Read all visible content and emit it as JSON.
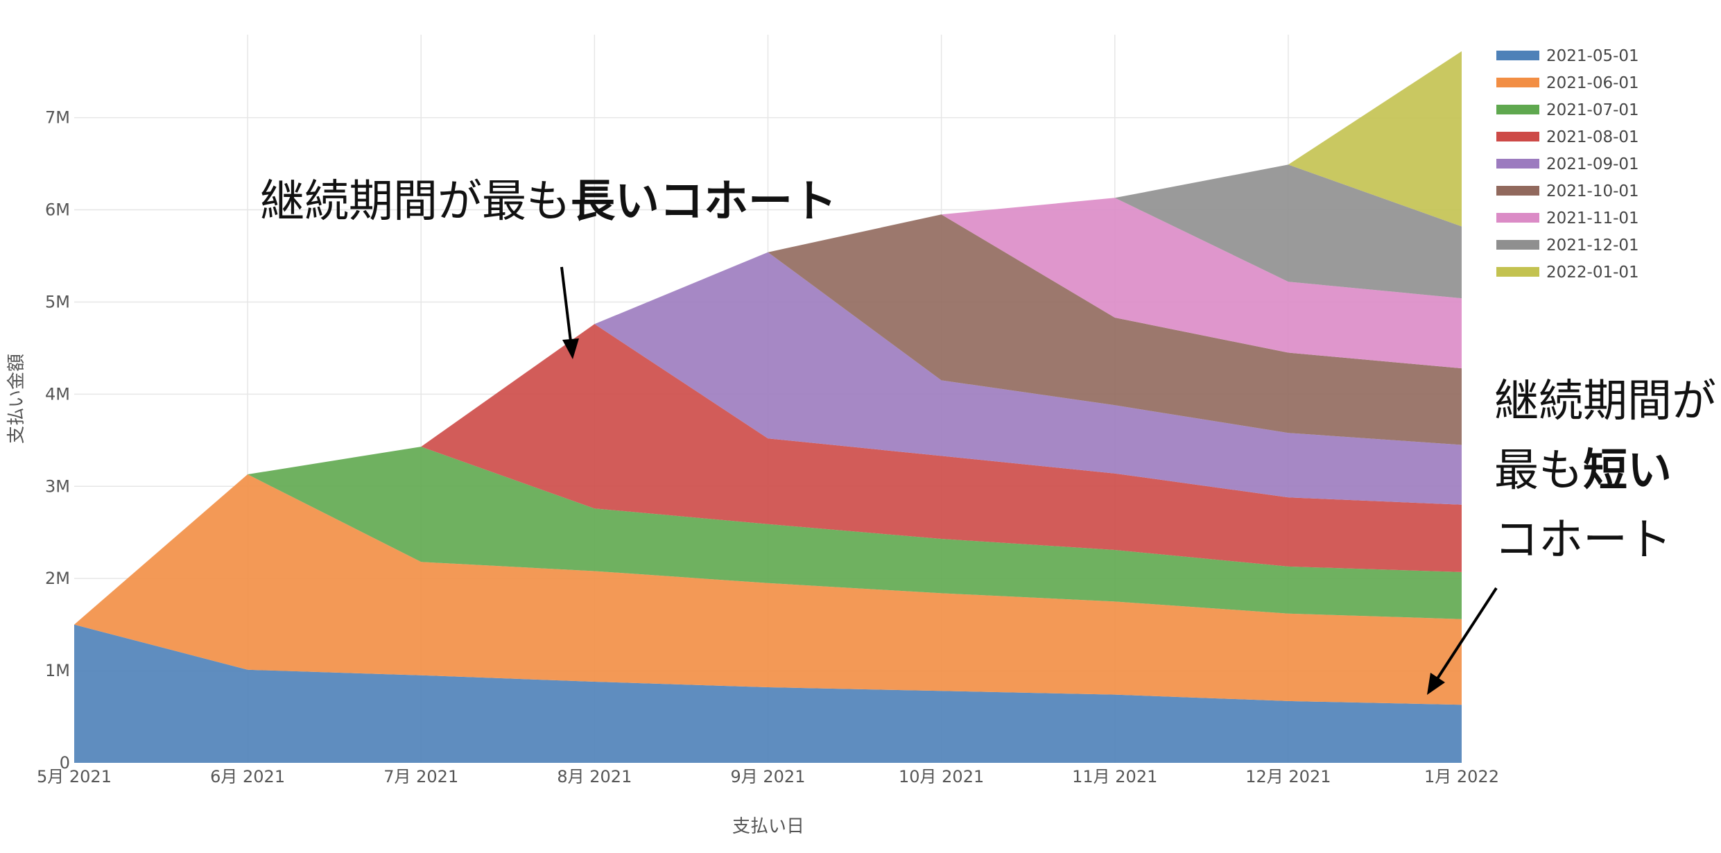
{
  "chart_data": {
    "type": "area",
    "stacked": true,
    "x": [
      "5月 2021",
      "6月 2021",
      "7月 2021",
      "8月 2021",
      "9月 2021",
      "10月 2021",
      "11月 2021",
      "12月 2021",
      "1月 2022"
    ],
    "xlabel": "支払い日",
    "ylabel": "支払い金額",
    "ylim": [
      0,
      7900000
    ],
    "yticks": [
      0,
      1000000,
      2000000,
      3000000,
      4000000,
      5000000,
      6000000,
      7000000
    ],
    "ytick_labels": [
      "0",
      "1M",
      "2M",
      "3M",
      "4M",
      "5M",
      "6M",
      "7M"
    ],
    "grid": true,
    "legend_position": "top-right",
    "series": [
      {
        "name": "2021-05-01",
        "color": "#4e81b8",
        "values": [
          1500000,
          1010000,
          950000,
          880000,
          820000,
          780000,
          740000,
          670000,
          630000
        ]
      },
      {
        "name": "2021-06-01",
        "color": "#f28e44",
        "values": [
          0,
          2120000,
          1230000,
          1200000,
          1130000,
          1060000,
          1010000,
          950000,
          930000
        ]
      },
      {
        "name": "2021-07-01",
        "color": "#5fa84f",
        "values": [
          0,
          0,
          1250000,
          680000,
          640000,
          590000,
          560000,
          510000,
          510000
        ]
      },
      {
        "name": "2021-08-01",
        "color": "#cd4a47",
        "values": [
          0,
          0,
          0,
          2000000,
          930000,
          900000,
          830000,
          750000,
          730000
        ]
      },
      {
        "name": "2021-09-01",
        "color": "#9c7bbf",
        "values": [
          0,
          0,
          0,
          0,
          2020000,
          820000,
          740000,
          700000,
          650000
        ]
      },
      {
        "name": "2021-10-01",
        "color": "#91695d",
        "values": [
          0,
          0,
          0,
          0,
          0,
          1800000,
          950000,
          870000,
          830000
        ]
      },
      {
        "name": "2021-11-01",
        "color": "#db8bc6",
        "values": [
          0,
          0,
          0,
          0,
          0,
          0,
          1300000,
          770000,
          760000
        ]
      },
      {
        "name": "2021-12-01",
        "color": "#8f8f8f",
        "values": [
          0,
          0,
          0,
          0,
          0,
          0,
          0,
          1270000,
          780000
        ]
      },
      {
        "name": "2022-01-01",
        "color": "#c3c250",
        "values": [
          0,
          0,
          0,
          0,
          0,
          0,
          0,
          0,
          1900000
        ]
      }
    ],
    "annotations": [
      {
        "text_normal": "継続期間が最も",
        "text_bold": "長いコホート"
      },
      {
        "line1": "継続期間が",
        "line2_normal": "最も",
        "line2_bold": "短い",
        "line3": "コホート"
      }
    ]
  }
}
